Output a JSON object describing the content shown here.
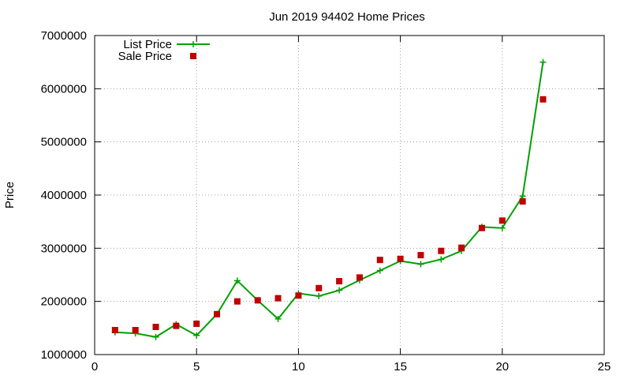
{
  "chart_data": {
    "type": "line",
    "title": "Jun 2019 94402 Home Prices",
    "xlabel": "",
    "ylabel": "Price",
    "xlim": [
      0,
      25
    ],
    "ylim": [
      1000000,
      7000000
    ],
    "x_ticks": [
      0,
      5,
      10,
      15,
      20,
      25
    ],
    "y_ticks": [
      1000000,
      2000000,
      3000000,
      4000000,
      5000000,
      6000000,
      7000000
    ],
    "grid": true,
    "legend_position": "top-left",
    "series": [
      {
        "name": "List Price",
        "style": "line-plus",
        "color": "#00a000",
        "x": [
          1,
          2,
          3,
          4,
          5,
          6,
          7,
          8,
          9,
          10,
          11,
          12,
          13,
          14,
          15,
          16,
          17,
          18,
          19,
          20,
          21,
          22
        ],
        "values": [
          1420000,
          1400000,
          1330000,
          1570000,
          1360000,
          1760000,
          2390000,
          2020000,
          1670000,
          2150000,
          2100000,
          2210000,
          2400000,
          2580000,
          2760000,
          2700000,
          2790000,
          2950000,
          3400000,
          3380000,
          3980000,
          6500000
        ]
      },
      {
        "name": "Sale Price",
        "style": "square",
        "color": "#c00000",
        "x": [
          1,
          2,
          3,
          4,
          5,
          6,
          7,
          8,
          9,
          10,
          11,
          12,
          13,
          14,
          15,
          16,
          17,
          18,
          19,
          20,
          21,
          22
        ],
        "values": [
          1460000,
          1460000,
          1520000,
          1540000,
          1580000,
          1760000,
          2000000,
          2020000,
          2060000,
          2110000,
          2250000,
          2380000,
          2450000,
          2780000,
          2800000,
          2870000,
          2950000,
          3010000,
          3380000,
          3520000,
          3880000,
          5800000
        ]
      }
    ]
  }
}
